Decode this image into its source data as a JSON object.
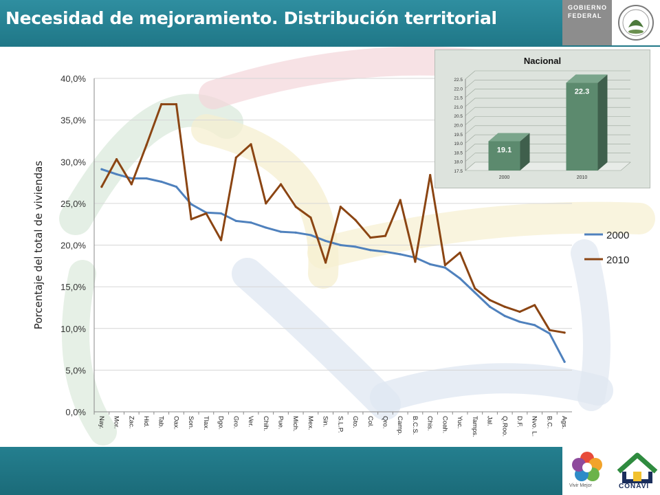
{
  "header": {
    "title": "Necesidad de mejoramiento. Distribución territorial",
    "gov_line1": "GOBIERNO",
    "gov_line2": "FEDERAL"
  },
  "footer": {
    "logo1_caption": "Vivir Mejor",
    "logo2_caption": "CONAVI"
  },
  "colors": {
    "series_2000": "#4f81bd",
    "series_2010": "#8b4513",
    "header_bg": "#22798a",
    "inset_bar": "#5c8a6e"
  },
  "chart_data": [
    {
      "type": "line",
      "ylabel": "Porcentaje del total de viviendas",
      "ylim": [
        0,
        40
      ],
      "yticks": [
        "0,0%",
        "5,0%",
        "10,0%",
        "15,0%",
        "20,0%",
        "25,0%",
        "30,0%",
        "35,0%",
        "40,0%"
      ],
      "grid": true,
      "legend_position": "right",
      "categories": [
        "Nay.",
        "Mor.",
        "Zac.",
        "Hid.",
        "Tab.",
        "Oax.",
        "Son.",
        "Tlax.",
        "Dgo.",
        "Gro.",
        "Ver.",
        "Chih.",
        "Pue.",
        "Mich.",
        "Mex.",
        "Sin.",
        "S.L.P.",
        "Gto.",
        "Col.",
        "Qro.",
        "Camp.",
        "B.C.S.",
        "Chis.",
        "Coah.",
        "Yuc.",
        "Tamps.",
        "Jal.",
        "Q.Roo.",
        "D.F.",
        "Nvo. L.",
        "B.C.",
        "Ags."
      ],
      "series": [
        {
          "name": "2000",
          "values": [
            29.1,
            28.5,
            28.0,
            28.0,
            27.6,
            27.0,
            24.9,
            23.9,
            23.8,
            22.9,
            22.7,
            22.1,
            21.6,
            21.5,
            21.2,
            20.5,
            20.0,
            19.8,
            19.4,
            19.2,
            18.9,
            18.5,
            17.7,
            17.3,
            16.0,
            14.3,
            12.6,
            11.5,
            10.8,
            10.4,
            9.4,
            6.0
          ]
        },
        {
          "name": "2010",
          "values": [
            27.0,
            30.3,
            27.3,
            32.0,
            36.9,
            36.9,
            23.1,
            23.8,
            20.6,
            30.5,
            32.1,
            25.0,
            27.3,
            24.6,
            23.3,
            17.9,
            24.6,
            23.0,
            20.9,
            21.1,
            25.4,
            18.0,
            28.4,
            17.6,
            19.1,
            14.8,
            13.4,
            12.6,
            12.0,
            12.8,
            9.8,
            9.5
          ]
        }
      ]
    },
    {
      "type": "bar",
      "title": "Nacional",
      "categories": [
        "2000",
        "2010"
      ],
      "values": [
        19.1,
        22.3
      ],
      "data_labels": [
        "19.1",
        "22.3"
      ],
      "ylim": [
        17.5,
        22.5
      ],
      "yticks": [
        "17.5",
        "18.0",
        "18.5",
        "19.0",
        "19.5",
        "20.0",
        "20.5",
        "21.0",
        "21.5",
        "22.0",
        "22.5"
      ]
    }
  ]
}
